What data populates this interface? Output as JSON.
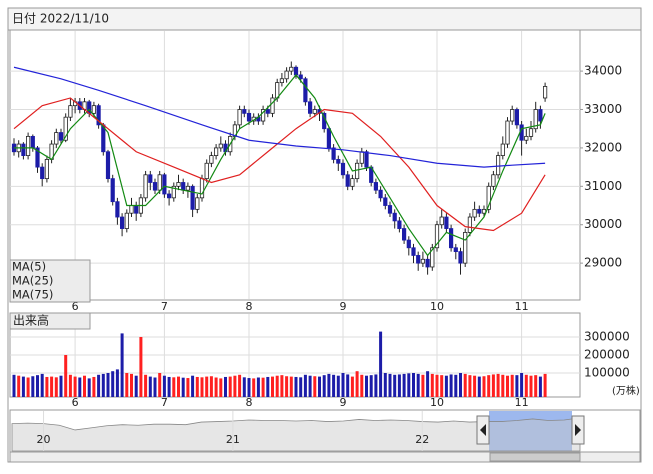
{
  "header": {
    "date_label": "日付 2022/11/10"
  },
  "chart_data": [
    {
      "type": "candlestick",
      "ohlc": [
        [
          32100,
          32250,
          31800,
          31900
        ],
        [
          31900,
          32200,
          31750,
          32100
        ],
        [
          32100,
          32150,
          31700,
          31800
        ],
        [
          31800,
          32400,
          31700,
          32300
        ],
        [
          32300,
          32350,
          31900,
          32000
        ],
        [
          32000,
          32050,
          31350,
          31500
        ],
        [
          31500,
          31600,
          31000,
          31200
        ],
        [
          31200,
          31800,
          31100,
          31700
        ],
        [
          31700,
          32200,
          31600,
          32100
        ],
        [
          32100,
          32500,
          32000,
          32400
        ],
        [
          32400,
          32500,
          32100,
          32200
        ],
        [
          32200,
          32900,
          32150,
          32800
        ],
        [
          32800,
          33300,
          32700,
          33100
        ],
        [
          33100,
          33300,
          32900,
          33200
        ],
        [
          33200,
          33300,
          32900,
          33000
        ],
        [
          33000,
          33300,
          32900,
          33200
        ],
        [
          33200,
          33250,
          32800,
          32900
        ],
        [
          32900,
          33200,
          32800,
          33100
        ],
        [
          33100,
          33150,
          32500,
          32600
        ],
        [
          32600,
          32650,
          31800,
          31900
        ],
        [
          31900,
          31950,
          31100,
          31200
        ],
        [
          31200,
          31300,
          30500,
          30600
        ],
        [
          30600,
          30700,
          30000,
          30200
        ],
        [
          30200,
          30300,
          29700,
          29900
        ],
        [
          29900,
          30400,
          29800,
          30300
        ],
        [
          30300,
          30700,
          30200,
          30500
        ],
        [
          30500,
          30600,
          30100,
          30300
        ],
        [
          30300,
          30800,
          30200,
          30700
        ],
        [
          30700,
          31400,
          30600,
          31300
        ],
        [
          31300,
          31400,
          30900,
          31100
        ],
        [
          31100,
          31200,
          30800,
          30900
        ],
        [
          30900,
          31400,
          30800,
          31300
        ],
        [
          31300,
          31350,
          30700,
          30800
        ],
        [
          30800,
          30900,
          30500,
          30700
        ],
        [
          30700,
          31100,
          30600,
          31000
        ],
        [
          31000,
          31300,
          30900,
          31100
        ],
        [
          31100,
          31200,
          30800,
          30900
        ],
        [
          30900,
          31100,
          30700,
          31000
        ],
        [
          31000,
          31050,
          30200,
          30400
        ],
        [
          30400,
          30800,
          30300,
          30700
        ],
        [
          30700,
          31300,
          30600,
          31200
        ],
        [
          31200,
          31700,
          31100,
          31600
        ],
        [
          31600,
          31900,
          31500,
          31800
        ],
        [
          31800,
          32100,
          31700,
          32000
        ],
        [
          32000,
          32300,
          31900,
          32100
        ],
        [
          32100,
          32200,
          31800,
          31900
        ],
        [
          31900,
          32400,
          31800,
          32300
        ],
        [
          32300,
          32700,
          32200,
          32600
        ],
        [
          32600,
          33100,
          32500,
          33000
        ],
        [
          33000,
          33100,
          32800,
          32900
        ],
        [
          32900,
          33000,
          32600,
          32700
        ],
        [
          32700,
          32900,
          32600,
          32800
        ],
        [
          32800,
          32900,
          32600,
          32700
        ],
        [
          32700,
          33100,
          32600,
          33000
        ],
        [
          33000,
          33100,
          32800,
          32900
        ],
        [
          32900,
          33400,
          32800,
          33300
        ],
        [
          33300,
          33800,
          33200,
          33700
        ],
        [
          33700,
          33950,
          33600,
          33800
        ],
        [
          33800,
          34100,
          33700,
          34000
        ],
        [
          34000,
          34250,
          33900,
          34100
        ],
        [
          34100,
          34150,
          33800,
          33900
        ],
        [
          33900,
          34000,
          33700,
          33800
        ],
        [
          33800,
          33850,
          33100,
          33200
        ],
        [
          33200,
          33300,
          32800,
          32900
        ],
        [
          32900,
          33100,
          32800,
          33000
        ],
        [
          33000,
          33100,
          32700,
          32900
        ],
        [
          32900,
          32950,
          32400,
          32500
        ],
        [
          32500,
          32550,
          31900,
          32000
        ],
        [
          32000,
          32100,
          31600,
          31700
        ],
        [
          31700,
          31800,
          31400,
          31600
        ],
        [
          31600,
          31700,
          31200,
          31300
        ],
        [
          31300,
          31400,
          30900,
          31000
        ],
        [
          31000,
          31300,
          30900,
          31200
        ],
        [
          31200,
          31700,
          31100,
          31600
        ],
        [
          31600,
          32000,
          31500,
          31900
        ],
        [
          31900,
          31950,
          31400,
          31500
        ],
        [
          31500,
          31550,
          31000,
          31100
        ],
        [
          31100,
          31200,
          30800,
          30900
        ],
        [
          30900,
          31000,
          30600,
          30700
        ],
        [
          30700,
          30800,
          30400,
          30500
        ],
        [
          30500,
          30600,
          30200,
          30300
        ],
        [
          30300,
          30400,
          29900,
          30100
        ],
        [
          30100,
          30200,
          29800,
          29900
        ],
        [
          29900,
          30000,
          29500,
          29600
        ],
        [
          29600,
          29700,
          29200,
          29400
        ],
        [
          29400,
          29500,
          29000,
          29200
        ],
        [
          29200,
          29300,
          28800,
          29000
        ],
        [
          29000,
          29300,
          28900,
          29100
        ],
        [
          29100,
          29200,
          28700,
          28900
        ],
        [
          28900,
          29500,
          28800,
          29400
        ],
        [
          29400,
          30100,
          29300,
          30000
        ],
        [
          30000,
          30400,
          29900,
          30200
        ],
        [
          30200,
          30300,
          29800,
          29900
        ],
        [
          29900,
          30000,
          29300,
          29400
        ],
        [
          29400,
          29500,
          29100,
          29300
        ],
        [
          29300,
          29400,
          28700,
          29000
        ],
        [
          29000,
          29900,
          28900,
          29800
        ],
        [
          29800,
          30300,
          29700,
          30200
        ],
        [
          30200,
          30600,
          30100,
          30400
        ],
        [
          30400,
          30500,
          30200,
          30300
        ],
        [
          30300,
          30500,
          30200,
          30400
        ],
        [
          30400,
          31100,
          30300,
          31000
        ],
        [
          31000,
          31400,
          30900,
          31300
        ],
        [
          31300,
          31900,
          31200,
          31800
        ],
        [
          31800,
          32300,
          31700,
          32100
        ],
        [
          32100,
          32800,
          32000,
          32700
        ],
        [
          32700,
          33100,
          32600,
          33000
        ],
        [
          33000,
          33050,
          32500,
          32600
        ],
        [
          32600,
          32700,
          31800,
          32200
        ],
        [
          32200,
          32500,
          32100,
          32300
        ],
        [
          32300,
          32700,
          32200,
          32500
        ],
        [
          32500,
          33200,
          32400,
          33000
        ],
        [
          33000,
          33100,
          32500,
          32700
        ],
        [
          33300,
          33700,
          33200,
          33600
        ]
      ],
      "up_color": "#ffffff",
      "down_color": "#1c1ca8",
      "ylim": [
        28040,
        35070
      ],
      "yticks": [
        29000,
        30000,
        31000,
        32000,
        33000,
        34000
      ],
      "xtick_index": [
        13,
        32,
        50,
        70,
        90,
        108
      ],
      "xtick_labels": [
        "6",
        "7",
        "8",
        "9",
        "10",
        "11"
      ],
      "grid": true,
      "ma": [
        {
          "name": "MA(5)",
          "color": "#138a13",
          "x": [
            0,
            4,
            8,
            12,
            16,
            20,
            24,
            28,
            32,
            36,
            40,
            44,
            48,
            52,
            56,
            60,
            64,
            68,
            72,
            76,
            80,
            84,
            88,
            92,
            96,
            100,
            104,
            108,
            112,
            113
          ],
          "values": [
            32000,
            32000,
            31700,
            32500,
            33000,
            32400,
            30500,
            30500,
            31000,
            30900,
            30800,
            31700,
            32500,
            32800,
            33300,
            33900,
            33300,
            32300,
            31400,
            31500,
            30700,
            29900,
            29200,
            29800,
            29600,
            30200,
            31400,
            32500,
            32600,
            32900
          ]
        },
        {
          "name": "MA(25)",
          "color": "#e02020",
          "x": [
            0,
            6,
            12,
            18,
            26,
            34,
            42,
            48,
            54,
            60,
            66,
            72,
            78,
            84,
            90,
            96,
            102,
            108,
            113
          ],
          "values": [
            32500,
            33100,
            33300,
            32700,
            31900,
            31500,
            31100,
            31300,
            31900,
            32500,
            33000,
            32900,
            32300,
            31500,
            30500,
            29950,
            29850,
            30300,
            31300
          ]
        },
        {
          "name": "MA(75)",
          "color": "#2323d8",
          "x": [
            0,
            10,
            18,
            28,
            40,
            50,
            60,
            70,
            80,
            90,
            100,
            106,
            113
          ],
          "values": [
            34100,
            33800,
            33500,
            33100,
            32600,
            32200,
            32050,
            31950,
            31800,
            31600,
            31500,
            31550,
            31600
          ]
        }
      ]
    },
    {
      "type": "bar",
      "title": "出来高",
      "unit_label": "(万株)",
      "values": [
        90000,
        85000,
        80000,
        75000,
        82000,
        88000,
        95000,
        78000,
        80000,
        76000,
        85000,
        200000,
        90000,
        80000,
        75000,
        85000,
        70000,
        78000,
        90000,
        95000,
        100000,
        110000,
        120000,
        320000,
        100000,
        95000,
        85000,
        300000,
        90000,
        80000,
        75000,
        100000,
        85000,
        78000,
        76000,
        80000,
        74000,
        72000,
        85000,
        78000,
        76000,
        80000,
        82000,
        75000,
        70000,
        78000,
        80000,
        85000,
        90000,
        76000,
        72000,
        70000,
        75000,
        74000,
        78000,
        80000,
        85000,
        88000,
        82000,
        80000,
        78000,
        76000,
        90000,
        85000,
        82000,
        80000,
        88000,
        95000,
        90000,
        85000,
        100000,
        92000,
        80000,
        110000,
        90000,
        85000,
        88000,
        92000,
        330000,
        100000,
        95000,
        90000,
        92000,
        95000,
        98000,
        100000,
        95000,
        90000,
        110000,
        95000,
        90000,
        88000,
        85000,
        92000,
        90000,
        100000,
        95000,
        88000,
        85000,
        80000,
        82000,
        88000,
        92000,
        95000,
        90000,
        85000,
        90000,
        88000,
        100000,
        90000,
        85000,
        88000,
        80000,
        95000
      ],
      "up_color": "#ff2020",
      "down_color": "#1c1ca8",
      "ylim": [
        0,
        350000
      ],
      "yticks": [
        100000,
        200000,
        300000
      ]
    },
    {
      "type": "area",
      "values": [
        27000,
        27500,
        27000,
        25500,
        21000,
        23000,
        25000,
        26000,
        25500,
        26500,
        26500,
        26000,
        28500,
        29000,
        29500,
        30500,
        30000,
        30000,
        29500,
        30000,
        29000,
        29500,
        31000,
        30000,
        30500,
        30000,
        29000,
        28500,
        29500,
        28500,
        29000,
        29000,
        30000,
        31500,
        30000,
        30500,
        32500
      ],
      "ylim": [
        0,
        40000
      ],
      "xtick_index": [
        2,
        14,
        26
      ],
      "xtick_labels": [
        "20",
        "21",
        "22"
      ]
    }
  ]
}
